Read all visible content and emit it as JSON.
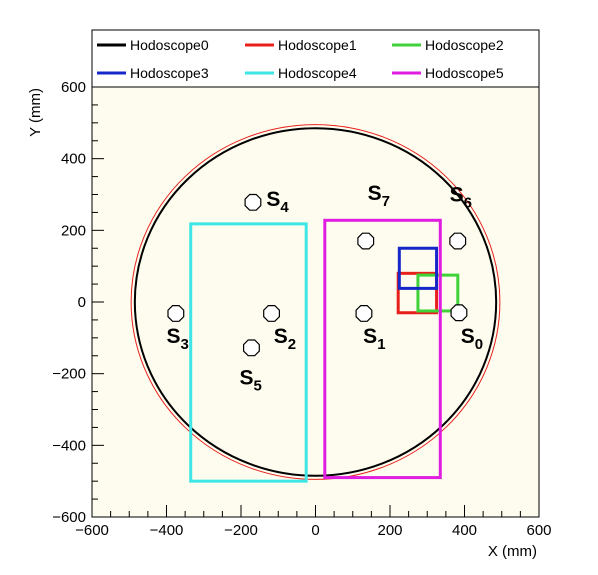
{
  "chart_data": {
    "type": "scatter",
    "xlabel": "X (mm)",
    "ylabel": "Y (mm)",
    "xlim": [
      -600,
      600
    ],
    "ylim": [
      -600,
      600
    ],
    "x_ticks": [
      -600,
      -400,
      -200,
      0,
      200,
      400,
      600
    ],
    "y_ticks": [
      -600,
      -400,
      -200,
      0,
      200,
      400,
      600
    ],
    "x_tick_labels": [
      "−600",
      "−400",
      "−200",
      "0",
      "200",
      "400",
      "600"
    ],
    "y_tick_labels": [
      "−600",
      "−400",
      "−200",
      "0",
      "200",
      "400",
      "600"
    ],
    "plot_background": "#fdfcee",
    "legend_position": "top",
    "circles": [
      {
        "center": [
          0,
          0
        ],
        "radius": 495,
        "color": "#e8201c",
        "stroke": 1
      },
      {
        "center": [
          0,
          0
        ],
        "radius": 485,
        "color": "#000000",
        "stroke": 2
      }
    ],
    "series": [
      {
        "name": "Hodoscope0",
        "color": "#000000",
        "rect": null
      },
      {
        "name": "Hodoscope1",
        "color": "#e8201c",
        "rect": {
          "x0": 222,
          "x1": 325,
          "y0": -30,
          "y1": 80
        }
      },
      {
        "name": "Hodoscope2",
        "color": "#3fd23a",
        "rect": {
          "x0": 275,
          "x1": 382,
          "y0": -25,
          "y1": 75
        }
      },
      {
        "name": "Hodoscope3",
        "color": "#1527c8",
        "rect": {
          "x0": 225,
          "x1": 325,
          "y0": 38,
          "y1": 150
        }
      },
      {
        "name": "Hodoscope4",
        "color": "#3ee6e6",
        "rect": {
          "x0": -335,
          "x1": -25,
          "y0": -500,
          "y1": 218
        }
      },
      {
        "name": "Hodoscope5",
        "color": "#e01de0",
        "rect": {
          "x0": 25,
          "x1": 335,
          "y0": -490,
          "y1": 228
        }
      }
    ],
    "sources": [
      {
        "label": "S",
        "sub": "0",
        "x": 385,
        "y": -30,
        "lx": 390,
        "ly": -115
      },
      {
        "label": "S",
        "sub": "1",
        "x": 130,
        "y": -32,
        "lx": 128,
        "ly": -115
      },
      {
        "label": "S",
        "sub": "2",
        "x": -118,
        "y": -32,
        "lx": -112,
        "ly": -115
      },
      {
        "label": "S",
        "sub": "3",
        "x": -375,
        "y": -32,
        "lx": -400,
        "ly": -115
      },
      {
        "label": "S",
        "sub": "4",
        "x": -168,
        "y": 278,
        "lx": -132,
        "ly": 268
      },
      {
        "label": "S",
        "sub": "5",
        "x": -172,
        "y": -128,
        "lx": -204,
        "ly": -230
      },
      {
        "label": "S",
        "sub": "6",
        "x": 382,
        "y": 170,
        "lx": 360,
        "ly": 280
      },
      {
        "label": "S",
        "sub": "7",
        "x": 135,
        "y": 170,
        "lx": 140,
        "ly": 285
      }
    ]
  }
}
